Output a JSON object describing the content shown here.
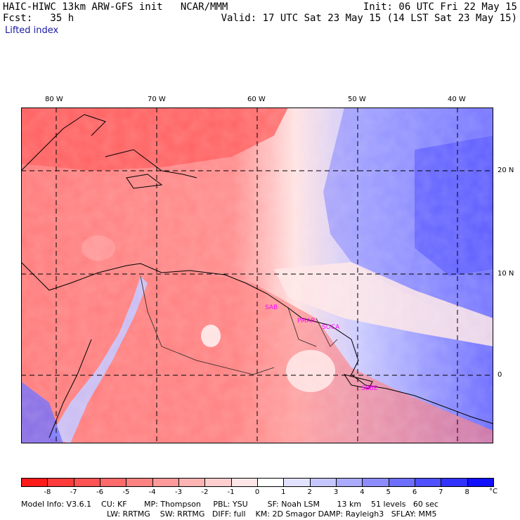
{
  "header": {
    "title_left": "HAIC-HIWC 13km ARW-GFS init   NCAR/MMM",
    "fcst_label": "Fcst:   35 h",
    "init": "Init: 06 UTC Fri 22 May 15",
    "valid": "Valid: 17 UTC Sat 23 May 15 (14 LST Sat 23 May 15)",
    "field": "Lifted index"
  },
  "axes": {
    "lon_labels": [
      "80 W",
      "70 W",
      "60 W",
      "50 W",
      "40 W"
    ],
    "lat_labels": [
      "20 N",
      "10 N",
      "0"
    ]
  },
  "cities": [
    "SAB",
    "PMAR",
    "SOCA",
    "SBBE"
  ],
  "colorbar": {
    "ticks": [
      "-8",
      "-7",
      "-6",
      "-5",
      "-4",
      "-3",
      "-2",
      "-1",
      "0",
      "1",
      "2",
      "3",
      "4",
      "5",
      "6",
      "7",
      "8"
    ],
    "unit": "°C",
    "colors": [
      "#ff1a1a",
      "#ff3a3a",
      "#ff5252",
      "#ff6a6a",
      "#ff8282",
      "#ff9a9a",
      "#ffb4b4",
      "#ffcece",
      "#ffe6e6",
      "#ffffff",
      "#e2e2ff",
      "#c6c6ff",
      "#aaaaff",
      "#8c8cff",
      "#6e6eff",
      "#5050ff",
      "#3232ff",
      "#1010ff"
    ]
  },
  "footer": {
    "line1": "Model Info: V3.6.1    CU: KF       MP: Thompson     PBL: YSU        SF: Noah LSM       13 km    51 levels   60 sec",
    "line2": "LW: RRTMG    SW: RRTMG   DIFF: full    KM: 2D Smagor DAMP: Rayleigh3   SFLAY: MM5"
  }
}
